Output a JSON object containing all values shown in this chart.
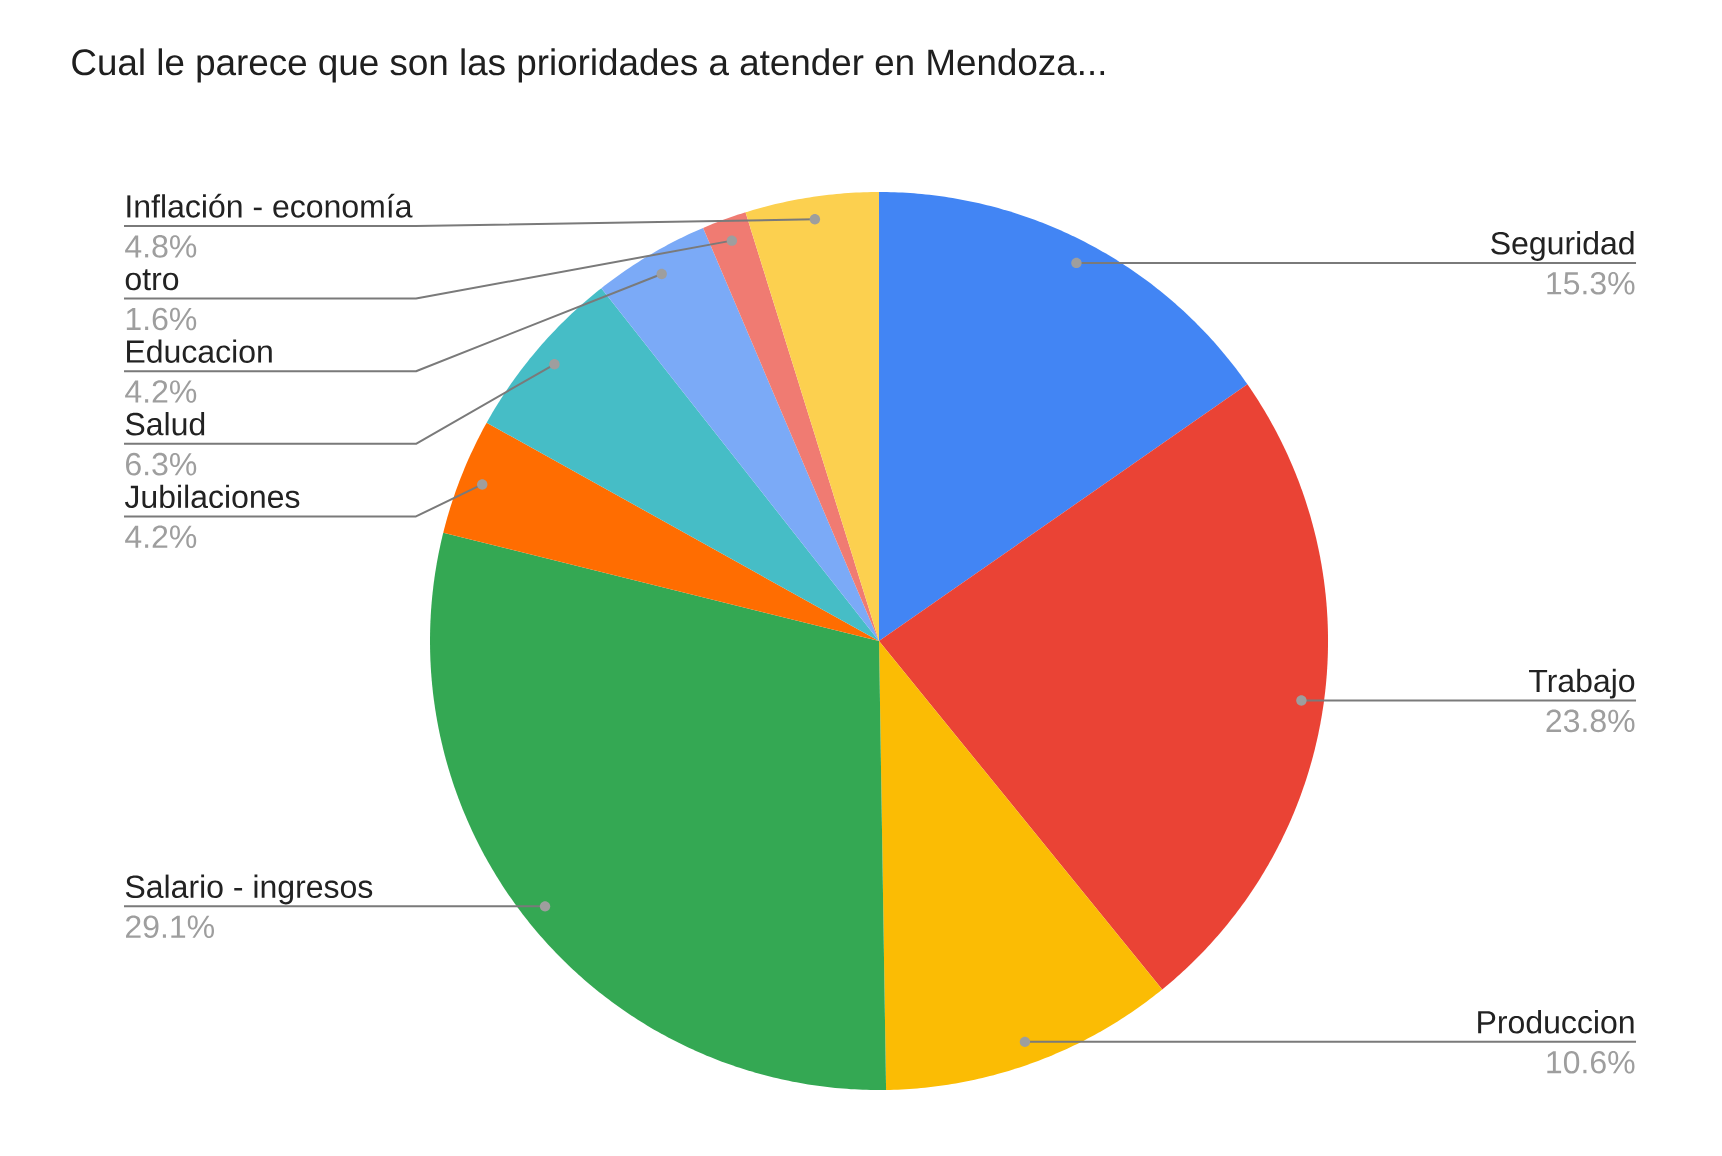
{
  "chart_data": {
    "type": "pie",
    "title": "Cual le parece que son las prioridades a atender en Mendoza...",
    "categories": [
      "Seguridad",
      "Trabajo",
      "Produccion",
      "Salario - ingresos",
      "Jubilaciones",
      "Salud",
      "Educacion",
      "otro",
      "Inflación - economía"
    ],
    "values": [
      15.3,
      23.8,
      10.6,
      29.1,
      4.2,
      6.3,
      4.2,
      1.6,
      4.8
    ],
    "value_labels": [
      "15.3%",
      "23.8%",
      "10.6%",
      "29.1%",
      "4.2%",
      "6.3%",
      "4.2%",
      "1.6%",
      "4.8%"
    ],
    "colors": [
      "#4285f4",
      "#ea4335",
      "#fbbc04",
      "#34a853",
      "#ff6d01",
      "#46bdc6",
      "#7baaf7",
      "#f07b72",
      "#fcd04f"
    ]
  }
}
